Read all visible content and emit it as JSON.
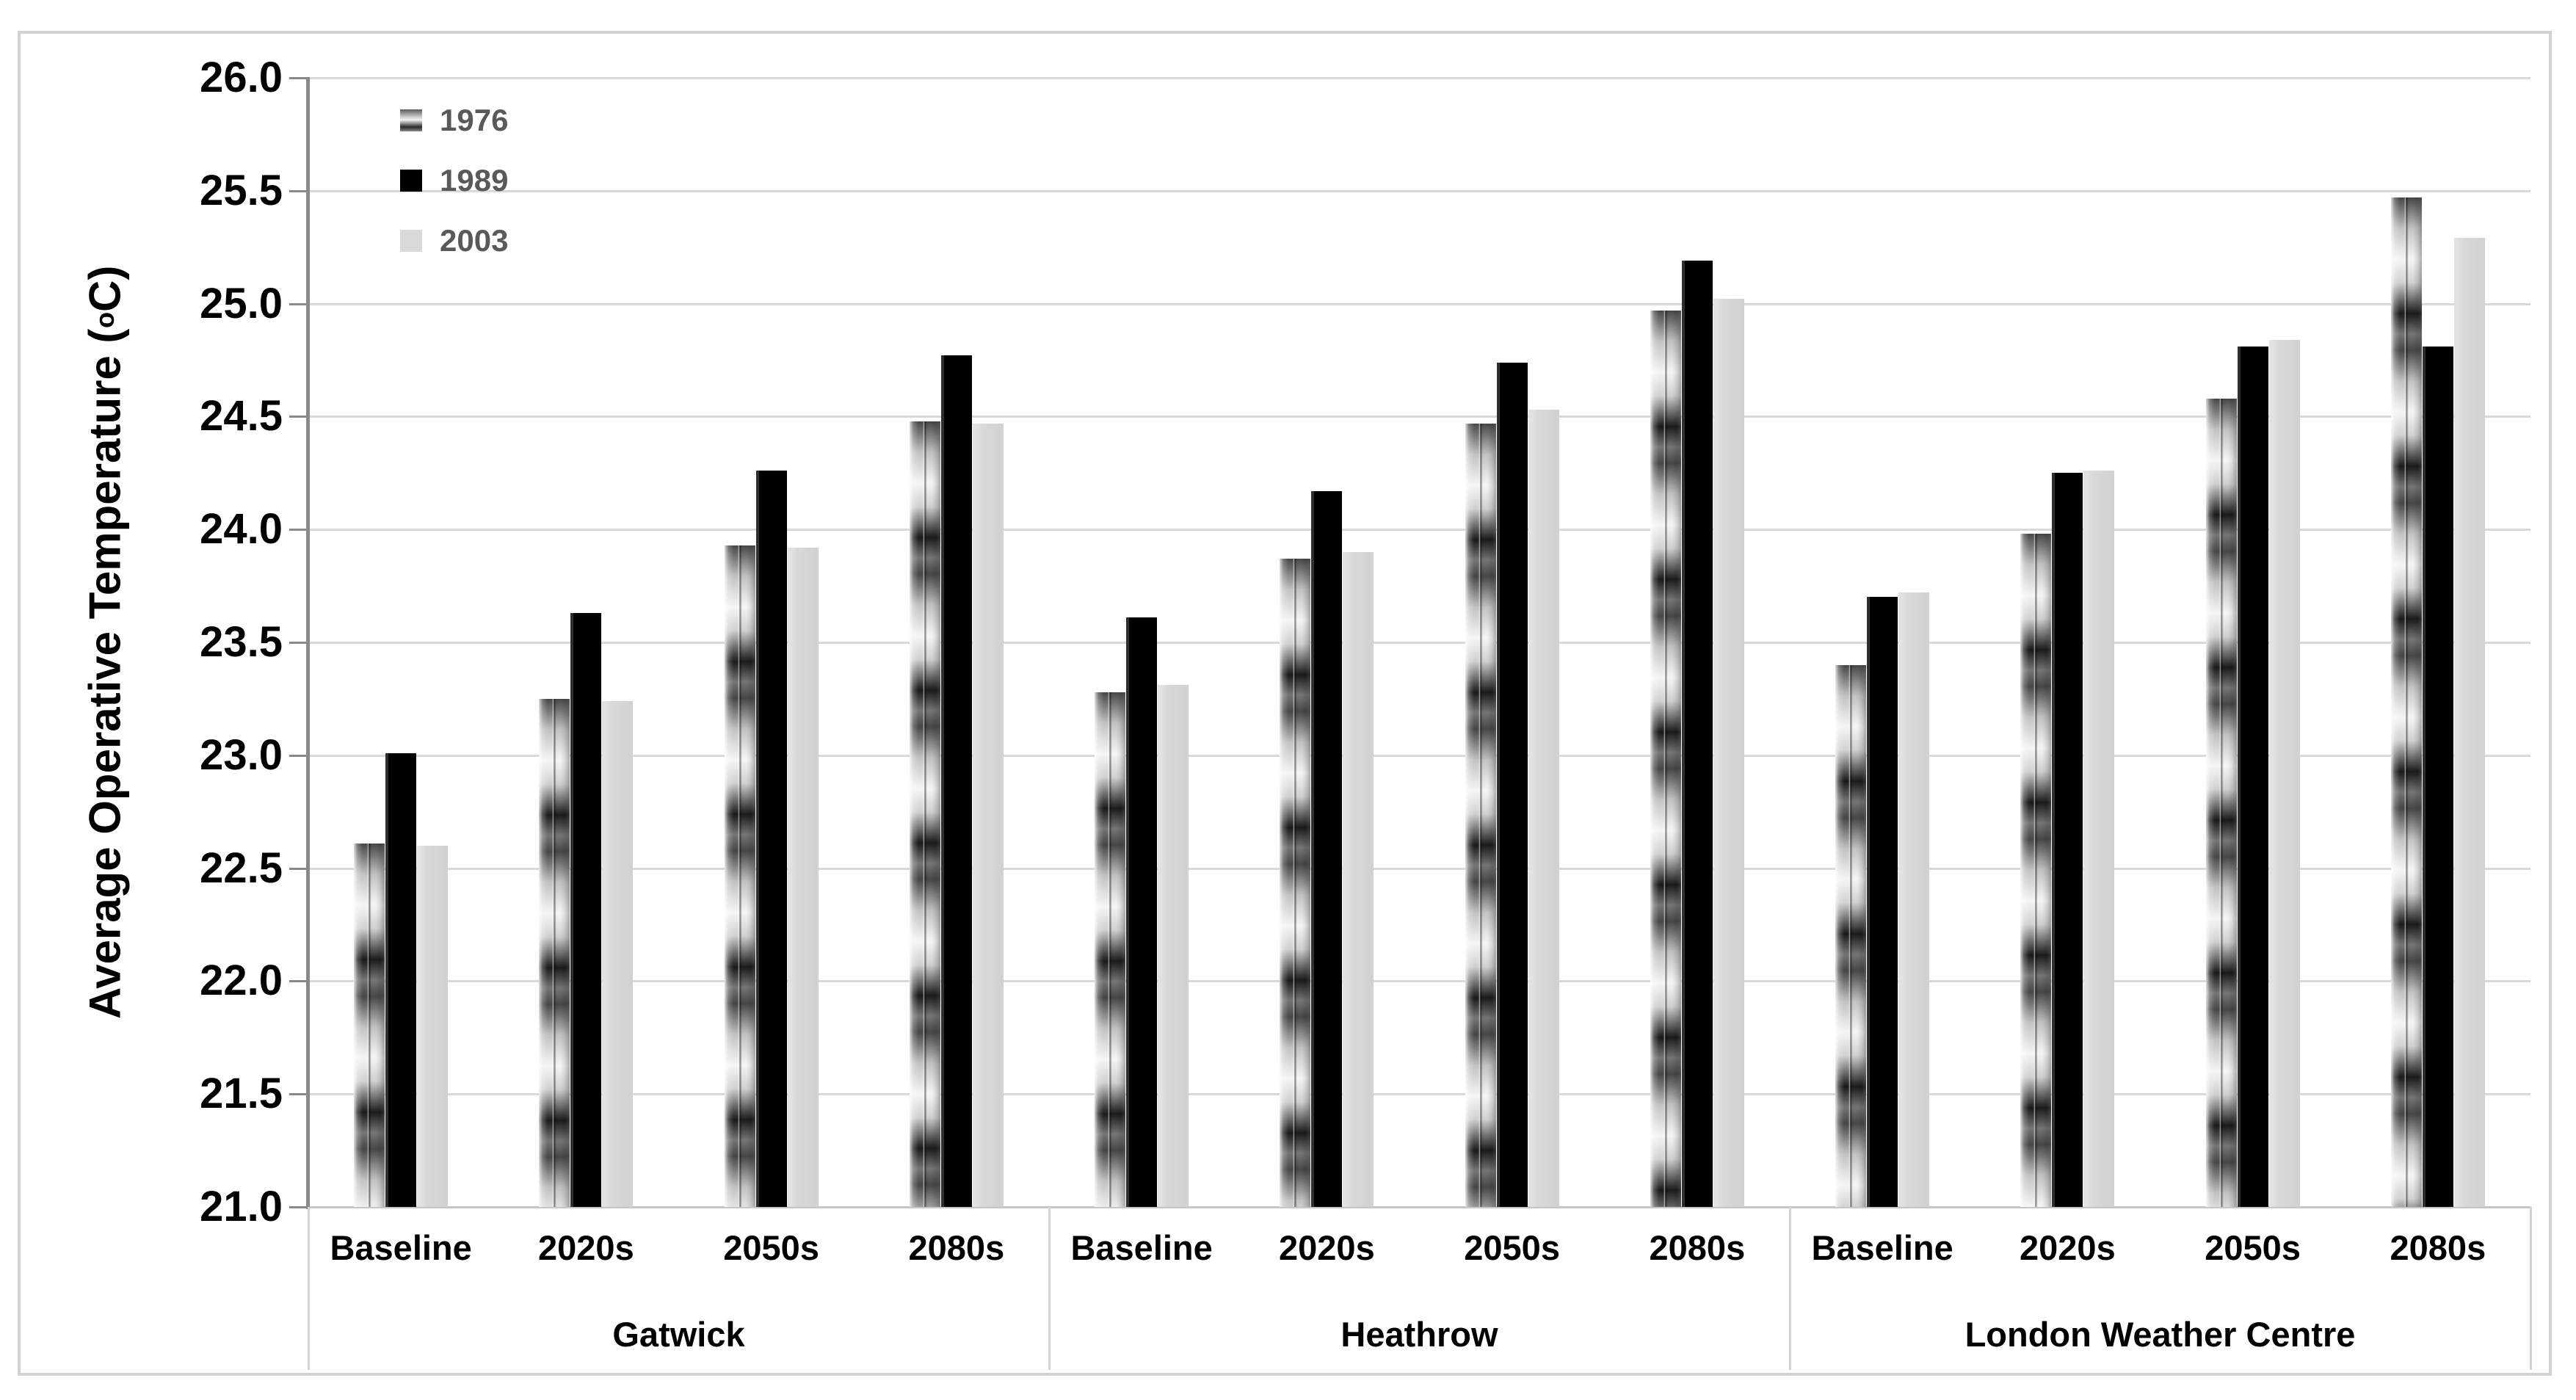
{
  "chart_data": {
    "type": "bar",
    "title": "",
    "ylabel": "Average Operative Temperature (oC)",
    "ylabel_prefix": "Average Operative Temperature (",
    "ylabel_sup": "o",
    "ylabel_suffix": "C)",
    "ylim": [
      21.0,
      26.0
    ],
    "ytick_step": 0.5,
    "ytick_labels": [
      "26.0",
      "25.5",
      "25.0",
      "24.5",
      "24.0",
      "23.5",
      "23.0",
      "22.5",
      "22.0",
      "21.5",
      "21.0"
    ],
    "grid": true,
    "legend_position": "top-left-inside",
    "groups": [
      "Gatwick",
      "Heathrow",
      "London Weather Centre"
    ],
    "categories_per_group": [
      "Baseline",
      "2020s",
      "2050s",
      "2080s"
    ],
    "series": [
      {
        "name": "1976",
        "style": "metallic",
        "color": "#8c8c8c",
        "values": [
          22.61,
          23.25,
          23.93,
          24.48,
          23.28,
          23.87,
          24.47,
          24.97,
          23.4,
          23.98,
          24.58,
          25.47
        ]
      },
      {
        "name": "1989",
        "style": "black",
        "color": "#000000",
        "values": [
          23.01,
          23.63,
          24.26,
          24.77,
          23.61,
          24.17,
          24.74,
          25.19,
          23.7,
          24.25,
          24.81,
          24.81
        ]
      },
      {
        "name": "2003",
        "style": "lightgray",
        "color": "#d9d9d9",
        "values": [
          22.6,
          23.24,
          23.92,
          24.47,
          23.31,
          23.9,
          24.53,
          25.02,
          23.72,
          24.26,
          24.84,
          25.29
        ]
      }
    ]
  },
  "colors": {
    "gridline": "#d9d9d9",
    "axis": "#898989",
    "frame_border": "#d2d2d2",
    "legend_text": "#595959",
    "label_text": "#000000",
    "background": "#ffffff"
  }
}
